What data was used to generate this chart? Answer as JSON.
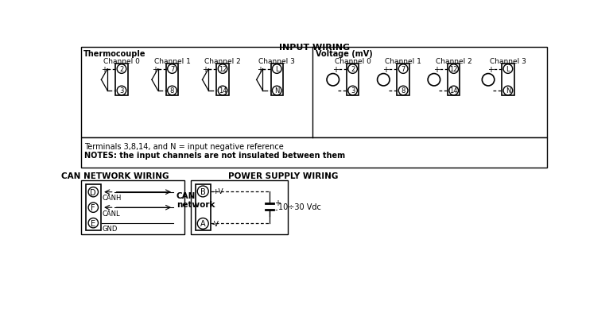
{
  "title": "INPUT WIRING",
  "thermocouple_label": "Thermocouple",
  "voltage_label": "Voltage (mV)",
  "channels": [
    "Channel 0",
    "Channel 1",
    "Channel 2",
    "Channel 3"
  ],
  "tc_terminals_top": [
    "2",
    "7",
    "12",
    "L"
  ],
  "tc_terminals_bot": [
    "3",
    "8",
    "14",
    "N"
  ],
  "notes_line1": "Terminals 3,8,14, and N = input negative reference",
  "notes_line2": "NOTES: the input channels are not insulated between them",
  "can_title": "CAN NETWORK WIRING",
  "can_terminals": [
    "D",
    "F",
    "E"
  ],
  "can_labels": [
    "CANH",
    "CANL",
    "GND"
  ],
  "can_network_label": "CAN\nnetwork",
  "pwr_title": "POWER SUPPLY WIRING",
  "pwr_terminals": [
    "B",
    "A"
  ],
  "pwr_labels": [
    "+V",
    "-V"
  ],
  "pwr_cap_label": "10÷30 Vdc",
  "bg_color": "#ffffff"
}
